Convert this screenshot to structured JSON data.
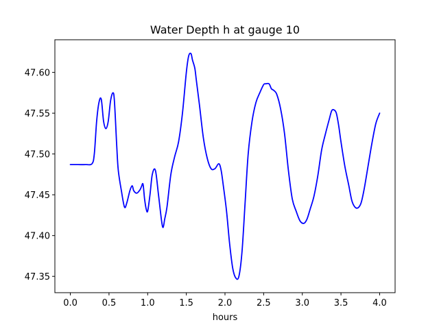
{
  "chart_data": {
    "type": "line",
    "title": "Water Depth h at gauge 10",
    "xlabel": "hours",
    "ylabel": "",
    "xlim": [
      -0.2,
      4.2
    ],
    "ylim": [
      47.33,
      47.64
    ],
    "xticks": [
      0.0,
      0.5,
      1.0,
      1.5,
      2.0,
      2.5,
      3.0,
      3.5,
      4.0
    ],
    "xtick_labels": [
      "0.0",
      "0.5",
      "1.0",
      "1.5",
      "2.0",
      "2.5",
      "3.0",
      "3.5",
      "4.0"
    ],
    "yticks": [
      47.35,
      47.4,
      47.45,
      47.5,
      47.55,
      47.6
    ],
    "ytick_labels": [
      "47.35",
      "47.40",
      "47.45",
      "47.50",
      "47.55",
      "47.60"
    ],
    "grid": false,
    "series": [
      {
        "color": "#0000ff",
        "x": [
          0.0,
          0.1,
          0.2,
          0.28,
          0.31,
          0.34,
          0.37,
          0.4,
          0.43,
          0.46,
          0.49,
          0.52,
          0.55,
          0.57,
          0.6,
          0.62,
          0.66,
          0.7,
          0.73,
          0.77,
          0.8,
          0.82,
          0.86,
          0.9,
          0.92,
          0.94,
          0.96,
          0.98,
          1.0,
          1.03,
          1.06,
          1.1,
          1.14,
          1.18,
          1.2,
          1.22,
          1.25,
          1.3,
          1.35,
          1.4,
          1.45,
          1.5,
          1.53,
          1.56,
          1.58,
          1.61,
          1.63,
          1.67,
          1.72,
          1.77,
          1.82,
          1.87,
          1.92,
          1.95,
          1.98,
          2.02,
          2.06,
          2.1,
          2.14,
          2.18,
          2.22,
          2.26,
          2.3,
          2.35,
          2.4,
          2.45,
          2.5,
          2.53,
          2.57,
          2.6,
          2.63,
          2.67,
          2.72,
          2.77,
          2.82,
          2.87,
          2.92,
          2.97,
          3.02,
          3.06,
          3.1,
          3.15,
          3.2,
          3.25,
          3.3,
          3.35,
          3.38,
          3.41,
          3.44,
          3.47,
          3.5,
          3.55,
          3.6,
          3.64,
          3.68,
          3.72,
          3.76,
          3.8,
          3.85,
          3.9,
          3.95,
          4.0
        ],
        "y": [
          47.487,
          47.487,
          47.487,
          47.488,
          47.5,
          47.54,
          47.563,
          47.567,
          47.54,
          47.531,
          47.54,
          47.565,
          47.575,
          47.565,
          47.51,
          47.48,
          47.455,
          47.435,
          47.44,
          47.455,
          47.461,
          47.455,
          47.452,
          47.456,
          47.46,
          47.463,
          47.445,
          47.433,
          47.43,
          47.45,
          47.475,
          47.48,
          47.45,
          47.418,
          47.41,
          47.42,
          47.435,
          47.475,
          47.497,
          47.515,
          47.55,
          47.6,
          47.62,
          47.623,
          47.615,
          47.605,
          47.59,
          47.56,
          47.52,
          47.495,
          47.482,
          47.482,
          47.488,
          47.48,
          47.46,
          47.43,
          47.39,
          47.36,
          47.348,
          47.35,
          47.38,
          47.44,
          47.5,
          47.54,
          47.563,
          47.575,
          47.585,
          47.586,
          47.586,
          47.58,
          47.578,
          47.573,
          47.555,
          47.525,
          47.48,
          47.445,
          47.43,
          47.418,
          47.415,
          47.42,
          47.432,
          47.448,
          47.473,
          47.505,
          47.525,
          47.543,
          47.553,
          47.554,
          47.55,
          47.535,
          47.515,
          47.485,
          47.462,
          47.443,
          47.435,
          47.434,
          47.44,
          47.457,
          47.485,
          47.513,
          47.537,
          47.55
        ]
      }
    ]
  }
}
